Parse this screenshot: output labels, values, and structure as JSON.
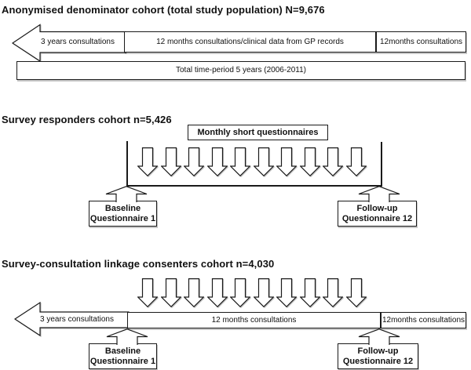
{
  "colors": {
    "line": "#1a1a1a",
    "background": "#ffffff",
    "text": "#111111"
  },
  "sections": {
    "denominator": {
      "title": "Anonymised denominator cohort (total study population) N=9,676",
      "left_arrow_label": "3 years consultations",
      "middle_box_label": "12 months consultations/clinical data from GP records",
      "right_box_label": "12months consultations",
      "total_box_label": "Total time-period 5 years (2006-2011)"
    },
    "responders": {
      "title": "Survey responders cohort n=5,426",
      "monthly_box_label": "Monthly short questionnaires",
      "monthly_arrow_count": 10,
      "baseline_box": {
        "line1": "Baseline",
        "line2": "Questionnaire 1"
      },
      "followup_box": {
        "line1": "Follow-up",
        "line2": "Questionnaire 12"
      }
    },
    "linkage": {
      "title": "Survey-consultation linkage consenters cohort n=4,030",
      "monthly_arrow_count": 10,
      "left_arrow_label": "3 years consultations",
      "middle_box_label": "12 months consultations",
      "right_box_label": "12months consultations",
      "baseline_box": {
        "line1": "Baseline",
        "line2": "Questionnaire 1"
      },
      "followup_box": {
        "line1": "Follow-up",
        "line2": "Questionnaire 12"
      }
    }
  }
}
